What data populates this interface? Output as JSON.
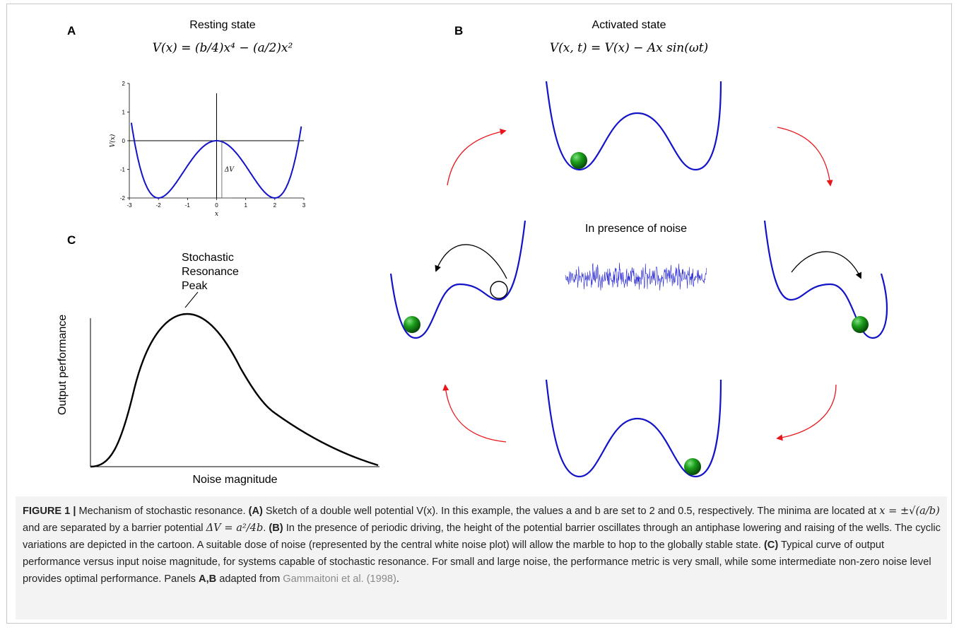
{
  "panelA": {
    "label": "A",
    "title": "Resting state",
    "equation": "V(x) = (b/4)x⁴ − (a/2)x²",
    "chart_data": {
      "type": "line",
      "ylabel": "V(x)",
      "xlabel": "x",
      "xlim": [
        -3,
        3
      ],
      "ylim": [
        -2,
        2
      ],
      "xticks": [
        "-3",
        "-2",
        "-1",
        "0",
        "1",
        "2",
        "3"
      ],
      "yticks": [
        "2",
        "1",
        "0",
        "-1",
        "-2"
      ],
      "function": "V(x) = 0.125 x^4 - x^2",
      "annotation": "ΔV"
    }
  },
  "panelB": {
    "label": "B",
    "title": "Activated state",
    "equation": "V(x, t) = V(x) − Ax sin(ωt)",
    "noise_label": "In presence of noise"
  },
  "panelC": {
    "label": "C",
    "chart_data": {
      "type": "line",
      "xlabel": "Noise magnitude",
      "ylabel": "Output performance",
      "annotation": [
        "Stochastic",
        "Resonance",
        "Peak"
      ]
    }
  },
  "caption": {
    "figure_label": "FIGURE 1 |",
    "intro": " Mechanism of stochastic resonance. ",
    "a_tag": "(A)",
    "a_text1": " Sketch of a double well potential V(x). In this example, the values a and b are set to 2 and 0.5, respectively. The minima are located at ",
    "a_minima": "x = ±√(a/b)",
    "a_text2": " and are separated by a barrier potential ",
    "a_barrier": "ΔV = a²/4b",
    "a_text3": ". ",
    "b_tag": "(B)",
    "b_text": " In the presence of periodic driving, the height of the potential barrier oscillates through an antiphase lowering and raising of the wells. The cyclic variations are depicted in the cartoon. A suitable dose of noise (represented by the central white noise plot) will allow the marble to hop to the globally stable state. ",
    "c_tag": "(C)",
    "c_text": " Typical curve of output performance versus input noise magnitude, for systems capable of stochastic resonance. For small and large noise, the performance metric is very small, while some intermediate non-zero noise level provides optimal performance.",
    "panels_prefix": " Panels ",
    "panels_bold": "A,B",
    "panels_text": " adapted from ",
    "citation": "Gammaitoni et al. (1998)",
    "end": "."
  }
}
